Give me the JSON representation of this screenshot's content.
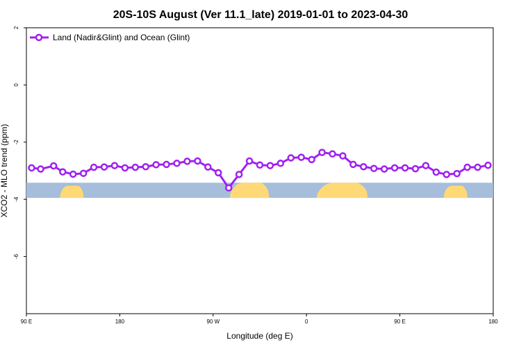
{
  "chart_data": {
    "type": "line",
    "title": "20S-10S August (Ver 11.1_late)   2019-01-01 to 2023-04-30",
    "xlabel": "Longitude (deg E)",
    "ylabel": "XCO2 - MLO trend (ppm)",
    "xlim": [
      90,
      450
    ],
    "ylim": [
      -8,
      2
    ],
    "x_ticks": [
      {
        "value": 90,
        "label": "90 E"
      },
      {
        "value": 162,
        "label": "180"
      },
      {
        "value": 234,
        "label": "90 W"
      },
      {
        "value": 306,
        "label": "0"
      },
      {
        "value": 378,
        "label": "90 E"
      },
      {
        "value": 450,
        "label": "180"
      }
    ],
    "y_ticks": [
      {
        "value": -6,
        "label": "-6"
      },
      {
        "value": -4,
        "label": "-4"
      },
      {
        "value": -2,
        "label": "-2"
      },
      {
        "value": 0,
        "label": "0"
      },
      {
        "value": 2,
        "label": "2"
      }
    ],
    "legend": {
      "position": "top-left"
    },
    "series": [
      {
        "name": "Land (Nadir&Glint) and Ocean (Glint)",
        "color": "#a020f0",
        "x": [
          94,
          101,
          111,
          118,
          126,
          134,
          142,
          150,
          158,
          166,
          174,
          182,
          190,
          198,
          206,
          214,
          222,
          230,
          238,
          246,
          254,
          262,
          270,
          278,
          286,
          294,
          302,
          310,
          318,
          326,
          334,
          342,
          350,
          358,
          366,
          374,
          382,
          390,
          398,
          406,
          414,
          422,
          430,
          438,
          446
        ],
        "y": [
          -2.9,
          -2.94,
          -2.83,
          -3.04,
          -3.12,
          -3.09,
          -2.88,
          -2.87,
          -2.82,
          -2.9,
          -2.88,
          -2.86,
          -2.79,
          -2.78,
          -2.74,
          -2.67,
          -2.66,
          -2.87,
          -3.07,
          -3.6,
          -3.13,
          -2.66,
          -2.8,
          -2.82,
          -2.74,
          -2.55,
          -2.53,
          -2.61,
          -2.36,
          -2.41,
          -2.48,
          -2.78,
          -2.86,
          -2.92,
          -2.94,
          -2.9,
          -2.9,
          -2.93,
          -2.82,
          -3.05,
          -3.13,
          -3.1,
          -2.88,
          -2.88,
          -2.81
        ]
      }
    ],
    "background_band": {
      "y_range": [
        -3.95,
        -3.42
      ],
      "ocean_color": "#a6bddb",
      "land_color": "#fed976",
      "land_segments": [
        {
          "from": 116,
          "to": 134
        },
        {
          "from": 247,
          "to": 277
        },
        {
          "from": 314,
          "to": 353
        },
        {
          "from": 412,
          "to": 430
        }
      ]
    }
  }
}
